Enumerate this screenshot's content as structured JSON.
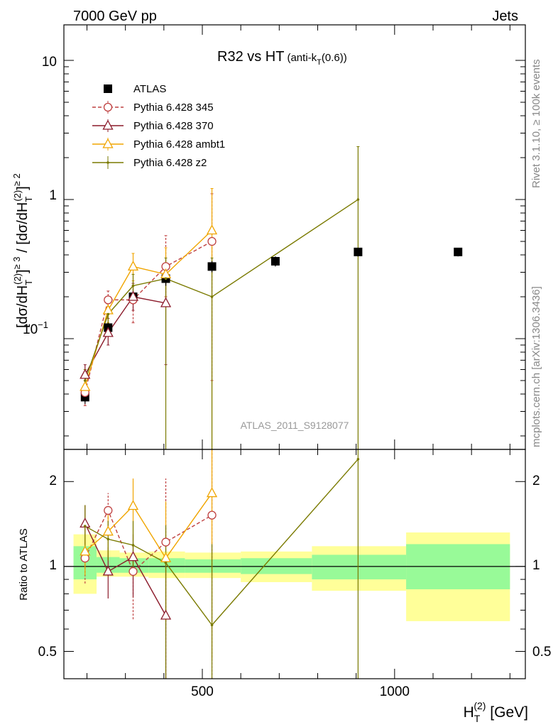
{
  "header": {
    "left": "7000 GeV pp",
    "right": "Jets"
  },
  "side_labels": {
    "rivet": "Rivet 3.1.10, ≥ 100k events",
    "source": "mcplots.cern.ch [arXiv:1306.3436]"
  },
  "top_panel": {
    "title_main": "R32 vs HT",
    "title_sub_pre": "(anti-k",
    "title_sub_idx": "T",
    "title_sub_post": "(0.6))",
    "ylabel_left": "[dσ/dH",
    "ylabel_sub1": "T",
    "ylabel_sup1": "(2)",
    "ylabel_mid": "]",
    "ylabel_sub2": "≥ 3",
    "ylabel_mid2": " / [dσ/dH",
    "ylabel_sub3": "T",
    "ylabel_sup3": "(2)",
    "ylabel_end": "]",
    "ylabel_sub4": "≥ 2",
    "watermark": "ATLAS_2011_S9128077",
    "yticks": [
      {
        "label": "10",
        "value": 10
      },
      {
        "label": "1",
        "value": 1
      },
      {
        "label": "10",
        "sup": "−1",
        "value": 0.1
      }
    ]
  },
  "bottom_panel": {
    "ylabel": "Ratio to ATLAS",
    "yticks": [
      "2",
      "1",
      "0.5"
    ],
    "xlabel_main": "H",
    "xlabel_sub": "T",
    "xlabel_sup": "(2)",
    "xlabel_unit": " [GeV]",
    "xticks": [
      "500",
      "1000"
    ]
  },
  "legend": [
    {
      "label": "ATLAS"
    },
    {
      "label": "Pythia 6.428 345"
    },
    {
      "label": "Pythia 6.428 370"
    },
    {
      "label": "Pythia 6.428 ambt1"
    },
    {
      "label": "Pythia 6.428 z2"
    }
  ],
  "colors": {
    "atlas": "#000000",
    "p345": "#bf4040",
    "p370": "#8b1a2a",
    "ambt1": "#f0a500",
    "z2": "#7a7a00",
    "band_inner": "#98fa98",
    "band_outer": "#ffff99",
    "watermark": "#999999"
  },
  "chart_data": [
    {
      "type": "scatter",
      "panel": "main",
      "log_y": true,
      "ylim": [
        0.016,
        18
      ],
      "xlim": [
        140,
        1340
      ],
      "series": [
        {
          "name": "ATLAS",
          "marker": "filled-square",
          "x": [
            195,
            255,
            320,
            405,
            525,
            690,
            905,
            1165
          ],
          "y": [
            0.038,
            0.12,
            0.2,
            0.27,
            0.33,
            0.36,
            0.42,
            0.42
          ],
          "err_up": [
            0.004,
            0.01,
            0.02,
            0.03,
            0.03,
            0.03,
            0.03,
            0.03
          ],
          "err_down": [
            0.004,
            0.01,
            0.02,
            0.03,
            0.03,
            0.03,
            0.03,
            0.03
          ]
        },
        {
          "name": "Pythia 6.428 345",
          "marker": "open-circle",
          "dashed": true,
          "x": [
            195,
            255,
            320,
            405,
            525
          ],
          "y": [
            0.041,
            0.19,
            0.19,
            0.33,
            0.5
          ],
          "y_hi": [
            0.05,
            0.22,
            0.24,
            0.55,
            1.1
          ],
          "y_lo": [
            0.033,
            0.16,
            0.13,
            0.2,
            0.05
          ]
        },
        {
          "name": "Pythia 6.428 370",
          "marker": "open-triangle",
          "x": [
            195,
            255,
            320,
            405
          ],
          "y": [
            0.055,
            0.11,
            0.2,
            0.18
          ],
          "y_hi": [
            0.065,
            0.14,
            0.25,
            0.3
          ],
          "y_lo": [
            0.045,
            0.09,
            0.16,
            0.065
          ]
        },
        {
          "name": "Pythia 6.428 ambt1",
          "marker": "open-triangle",
          "x": [
            195,
            255,
            320,
            405,
            525
          ],
          "y": [
            0.045,
            0.16,
            0.33,
            0.29,
            0.6
          ],
          "y_hi": [
            0.055,
            0.19,
            0.41,
            0.45,
            1.2
          ],
          "y_lo": [
            0.037,
            0.13,
            0.26,
            0.17,
            0.016
          ]
        },
        {
          "name": "Pythia 6.428 z2",
          "marker": "dot",
          "x": [
            195,
            255,
            320,
            405,
            525,
            905
          ],
          "y": [
            0.05,
            0.15,
            0.24,
            0.27,
            0.2,
            1.0
          ],
          "y_hi": [
            0.06,
            0.17,
            0.29,
            0.38,
            0.38,
            2.4
          ],
          "y_lo": [
            0.04,
            0.12,
            0.2,
            0.016,
            0.016,
            0.016
          ]
        }
      ]
    },
    {
      "type": "scatter",
      "panel": "ratio",
      "log_y": true,
      "ylim": [
        0.4,
        2.6
      ],
      "xlim": [
        140,
        1340
      ],
      "reference": 1,
      "bands": [
        {
          "x0": 165,
          "x1": 225,
          "inner": [
            0.9,
            1.18
          ],
          "outer": [
            0.8,
            1.3
          ]
        },
        {
          "x0": 225,
          "x1": 285,
          "inner": [
            0.95,
            1.08
          ],
          "outer": [
            0.92,
            1.14
          ]
        },
        {
          "x0": 285,
          "x1": 360,
          "inner": [
            0.95,
            1.07
          ],
          "outer": [
            0.92,
            1.12
          ]
        },
        {
          "x0": 360,
          "x1": 455,
          "inner": [
            0.95,
            1.07
          ],
          "outer": [
            0.91,
            1.13
          ]
        },
        {
          "x0": 455,
          "x1": 600,
          "inner": [
            0.95,
            1.06
          ],
          "outer": [
            0.91,
            1.12
          ]
        },
        {
          "x0": 600,
          "x1": 785,
          "inner": [
            0.94,
            1.07
          ],
          "outer": [
            0.88,
            1.13
          ]
        },
        {
          "x0": 785,
          "x1": 1030,
          "inner": [
            0.9,
            1.1
          ],
          "outer": [
            0.82,
            1.18
          ]
        },
        {
          "x0": 1030,
          "x1": 1300,
          "inner": [
            0.83,
            1.2
          ],
          "outer": [
            0.64,
            1.32
          ]
        }
      ],
      "series": [
        {
          "name": "Pythia 6.428 345",
          "x": [
            195,
            255,
            320,
            405,
            525
          ],
          "y": [
            1.07,
            1.58,
            0.96,
            1.22,
            1.52
          ],
          "y_hi": [
            1.23,
            1.82,
            1.2,
            2.05,
            3.0
          ],
          "y_lo": [
            0.87,
            1.35,
            0.65,
            0.4,
            0.4
          ]
        },
        {
          "name": "Pythia 6.428 370",
          "x": [
            195,
            255,
            320,
            405
          ],
          "y": [
            1.42,
            0.96,
            1.08,
            0.67
          ],
          "y_hi": [
            1.65,
            1.17,
            1.3,
            1.12
          ],
          "y_lo": [
            1.2,
            0.77,
            0.78,
            0.4
          ]
        },
        {
          "name": "Pythia 6.428 ambt1",
          "x": [
            195,
            255,
            320,
            405,
            525
          ],
          "y": [
            1.13,
            1.33,
            1.64,
            1.07,
            1.82
          ],
          "y_hi": [
            1.38,
            1.58,
            2.05,
            1.7,
            3.0
          ],
          "y_lo": [
            0.93,
            1.1,
            1.23,
            0.64,
            0.47
          ]
        },
        {
          "name": "Pythia 6.428 z2",
          "x": [
            195,
            255,
            320,
            405,
            525,
            905
          ],
          "y": [
            1.39,
            1.25,
            1.19,
            1.03,
            0.62,
            2.4
          ],
          "y_hi": [
            1.65,
            1.45,
            1.45,
            1.4,
            1.2,
            3.0
          ],
          "y_lo": [
            1.13,
            1.05,
            0.95,
            0.4,
            0.4,
            0.4
          ]
        }
      ]
    }
  ]
}
